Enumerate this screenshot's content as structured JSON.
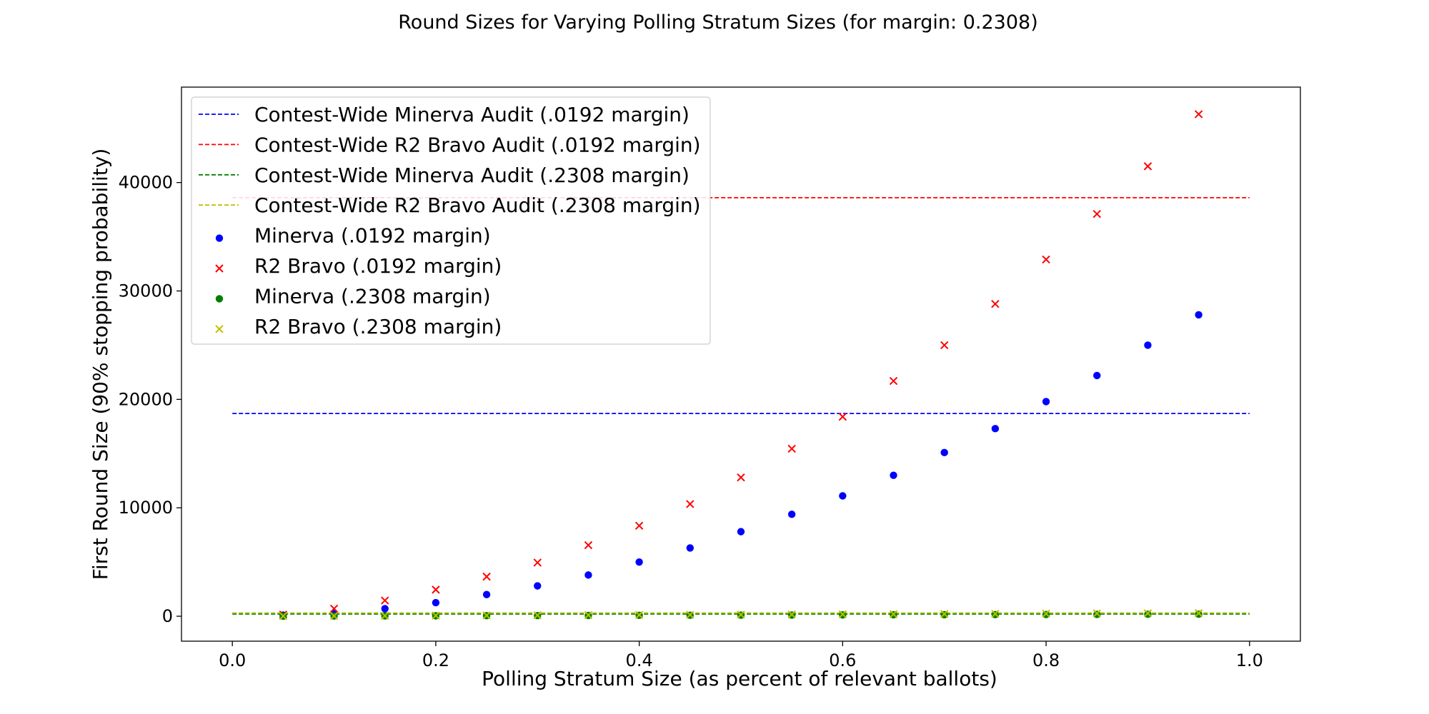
{
  "chart_data": {
    "type": "scatter",
    "title": "Round Sizes for Varying Polling Stratum Sizes (for margin: 0.2308)",
    "xlabel": "Polling Stratum Size (as percent of relevant ballots)",
    "ylabel": "First Round Size (90% stopping probability)",
    "xlim": [
      -0.05,
      1.05
    ],
    "ylim": [
      -2300,
      48800
    ],
    "xticks": [
      0.0,
      0.2,
      0.4,
      0.6,
      0.8,
      1.0
    ],
    "xtick_labels": [
      "0.0",
      "0.2",
      "0.4",
      "0.6",
      "0.8",
      "1.0"
    ],
    "yticks": [
      0,
      10000,
      20000,
      30000,
      40000
    ],
    "ytick_labels": [
      "0",
      "10000",
      "20000",
      "30000",
      "40000"
    ],
    "grid": false,
    "legend_position": "upper-left",
    "reference_lines": [
      {
        "name": "Contest-Wide Minerva Audit (.0192 margin)",
        "y": 18700,
        "x_range": [
          0.0,
          1.0
        ],
        "color": "#0000ff",
        "style": "dashed"
      },
      {
        "name": "Contest-Wide R2 Bravo Audit (.0192 margin)",
        "y": 38600,
        "x_range": [
          0.0,
          1.0
        ],
        "color": "#ff0000",
        "style": "dashed"
      },
      {
        "name": "Contest-Wide Minerva Audit (.2308 margin)",
        "y": 200,
        "x_range": [
          0.0,
          1.0
        ],
        "color": "#008000",
        "style": "dashed"
      },
      {
        "name": "Contest-Wide R2 Bravo Audit (.2308 margin)",
        "y": 300,
        "x_range": [
          0.0,
          1.0
        ],
        "color": "#bfbf00",
        "style": "dashed"
      }
    ],
    "x": [
      0.05,
      0.1,
      0.15,
      0.2,
      0.25,
      0.3,
      0.35,
      0.4,
      0.45,
      0.5,
      0.55,
      0.6,
      0.65,
      0.7,
      0.75,
      0.8,
      0.85,
      0.9,
      0.95
    ],
    "series": [
      {
        "name": "Minerva (.0192 margin)",
        "marker": "dot",
        "color": "#0000ff",
        "values": [
          100,
          250,
          700,
          1250,
          2000,
          2800,
          3800,
          5000,
          6300,
          7800,
          9400,
          11100,
          13000,
          15100,
          17300,
          19800,
          22200,
          25000,
          27800
        ]
      },
      {
        "name": "R2 Bravo (.0192 margin)",
        "marker": "x",
        "color": "#ff0000",
        "values": [
          150,
          700,
          1450,
          2450,
          3650,
          4950,
          6550,
          8350,
          10350,
          12800,
          15450,
          18400,
          21700,
          25000,
          28800,
          32900,
          37100,
          41500,
          46300
        ]
      },
      {
        "name": "Minerva (.2308 margin)",
        "marker": "dot",
        "color": "#008000",
        "values": [
          10,
          20,
          30,
          40,
          50,
          60,
          70,
          80,
          90,
          100,
          110,
          120,
          130,
          140,
          150,
          160,
          170,
          180,
          190
        ]
      },
      {
        "name": "R2 Bravo (.2308 margin)",
        "marker": "x",
        "color": "#bfbf00",
        "values": [
          15,
          30,
          45,
          60,
          75,
          90,
          105,
          120,
          135,
          150,
          165,
          180,
          195,
          210,
          225,
          240,
          255,
          270,
          285
        ]
      }
    ]
  }
}
